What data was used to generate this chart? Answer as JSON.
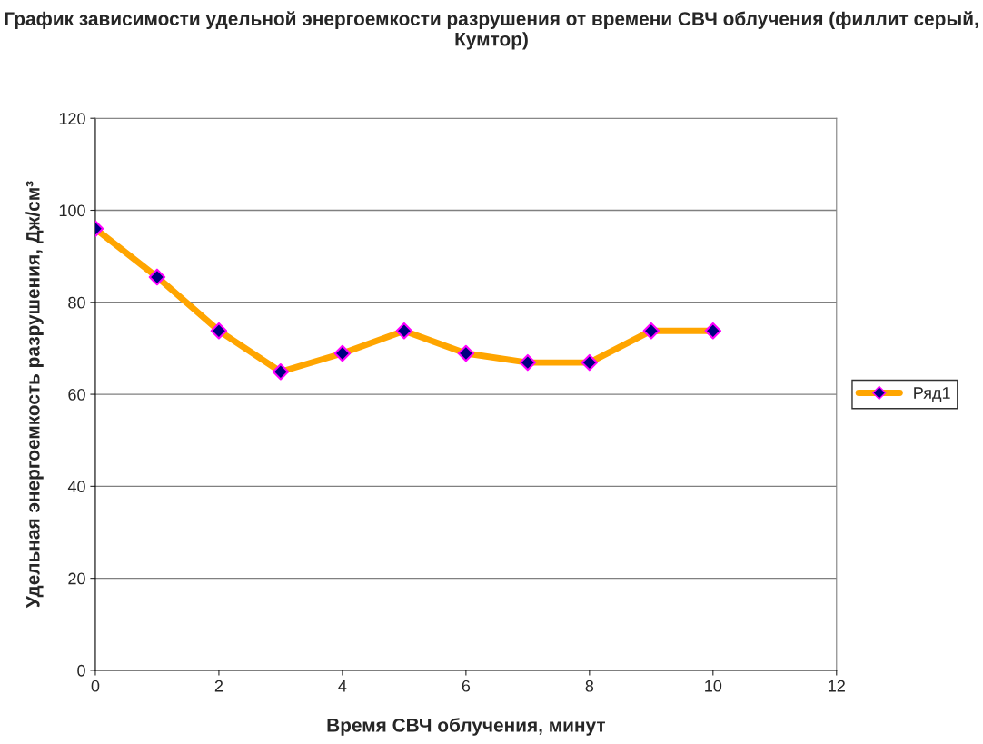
{
  "chart_data": {
    "type": "line",
    "title": "График зависимости удельной энергоемкости разрушения от времени СВЧ облучения (филлит серый, Кумтор)",
    "xlabel": "Время СВЧ облучения, минут",
    "ylabel": "Удельная энергоемкость разрушения, Дж/см³",
    "x": [
      0,
      1,
      2,
      3,
      4,
      5,
      6,
      7,
      8,
      9,
      10
    ],
    "series": [
      {
        "name": "Ряд1",
        "color": "#ffa500",
        "values": [
          96,
          85.5,
          73.8,
          64.9,
          68.9,
          73.8,
          68.9,
          66.9,
          66.9,
          73.8,
          73.8
        ]
      }
    ],
    "xlim": [
      0,
      12
    ],
    "xticks": [
      0,
      2,
      4,
      6,
      8,
      10,
      12
    ],
    "ylim": [
      0,
      120
    ],
    "yticks": [
      0,
      20,
      40,
      60,
      80,
      100,
      120
    ],
    "grid": "y",
    "legend": "right",
    "marker": "diamond",
    "line_style": "solid"
  }
}
